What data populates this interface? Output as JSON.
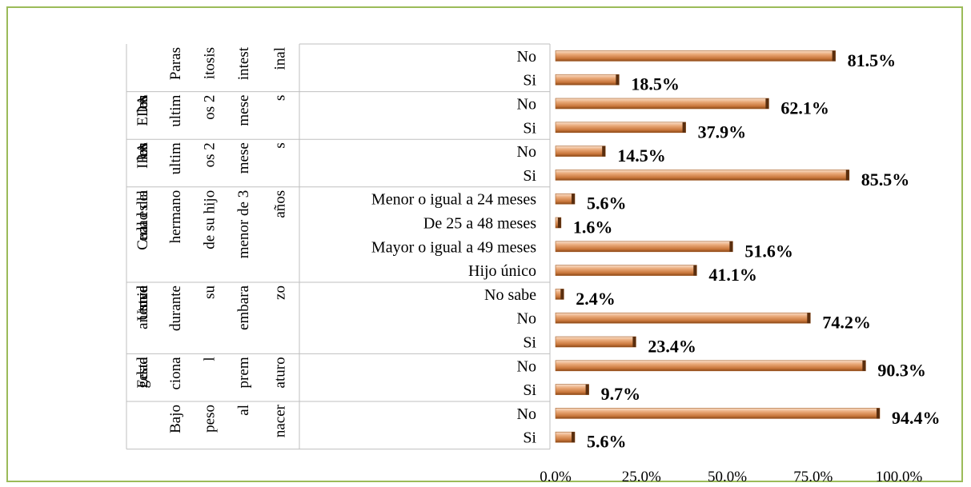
{
  "colors": {
    "frame": "#9bbb59",
    "bar_light": "#f7d2b4",
    "bar_mid": "#e1985f",
    "bar_dark": "#9a5522",
    "bar_cap": "#5a2e0e",
    "grid": "#bfbfbf"
  },
  "chart_data": {
    "type": "bar",
    "orientation": "horizontal",
    "xlim": [
      0,
      100
    ],
    "x_ticks": [
      "0.0%",
      "25.0%",
      "50.0%",
      "75.0%",
      "100.0%"
    ],
    "groups": [
      {
        "label_lines": [
          "Paras",
          "itosis",
          "intest",
          "inal"
        ],
        "items": [
          {
            "label": "No",
            "value": 81.5,
            "display": "81.5%"
          },
          {
            "label": "Si",
            "value": 18.5,
            "display": "18.5%"
          }
        ]
      },
      {
        "label_lines": [
          "EDA",
          "en",
          "los",
          "ultim",
          "os 2",
          "mese",
          "s"
        ],
        "items": [
          {
            "label": "No",
            "value": 62.1,
            "display": "62.1%"
          },
          {
            "label": "Si",
            "value": 37.9,
            "display": "37.9%"
          }
        ]
      },
      {
        "label_lines": [
          "IRA",
          "en",
          "los",
          "ultim",
          "os 2",
          "mese",
          "s"
        ],
        "items": [
          {
            "label": "No",
            "value": 14.5,
            "display": "14.5%"
          },
          {
            "label": "Si",
            "value": 85.5,
            "display": "85.5%"
          }
        ]
      },
      {
        "label_lines": [
          "Cual es la",
          "edad del",
          "hermano",
          "de su hijo",
          "menor de 3",
          "años"
        ],
        "items": [
          {
            "label": "Menor o igual a 24 meses",
            "value": 5.6,
            "display": "5.6%"
          },
          {
            "label": "De 25 a 48 meses",
            "value": 1.6,
            "display": "1.6%"
          },
          {
            "label": "Mayor o igual a 49 meses",
            "value": 51.6,
            "display": "51.6%"
          },
          {
            "label": "Hijo único",
            "value": 41.1,
            "display": "41.1%"
          }
        ]
      },
      {
        "label_lines": [
          "Usted",
          "tuve",
          "anemia",
          "durante",
          "su",
          "embara",
          "zo"
        ],
        "items": [
          {
            "label": "No sabe",
            "value": 2.4,
            "display": "2.4%"
          },
          {
            "label": "No",
            "value": 74.2,
            "display": "74.2%"
          },
          {
            "label": "Si",
            "value": 23.4,
            "display": "23.4%"
          }
        ]
      },
      {
        "label_lines": [
          "Edad",
          "gesta",
          "ciona",
          "l",
          "prem",
          "aturo"
        ],
        "items": [
          {
            "label": "No",
            "value": 90.3,
            "display": "90.3%"
          },
          {
            "label": "Si",
            "value": 9.7,
            "display": "9.7%"
          }
        ]
      },
      {
        "label_lines": [
          "Bajo",
          "peso",
          "al",
          "nacer"
        ],
        "items": [
          {
            "label": "No",
            "value": 94.4,
            "display": "94.4%"
          },
          {
            "label": "Si",
            "value": 5.6,
            "display": "5.6%"
          }
        ]
      }
    ]
  }
}
